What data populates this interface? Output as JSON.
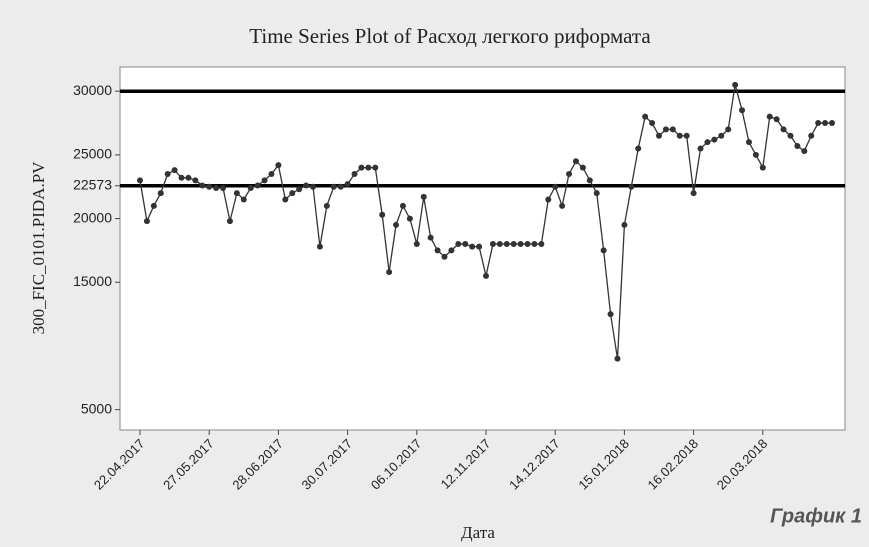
{
  "chart_data": {
    "type": "line",
    "title": "Time Series Plot of Расход легкого риформата",
    "x_label": "Дата",
    "y_label": "300_FIC_0101.PIDA.PV",
    "annotation": "График 1",
    "categories": [
      "22.04.2017",
      null,
      null,
      null,
      null,
      null,
      null,
      null,
      null,
      null,
      "27.05.2017",
      null,
      null,
      null,
      null,
      null,
      null,
      null,
      null,
      null,
      "28.06.2017",
      null,
      null,
      null,
      null,
      null,
      null,
      null,
      null,
      null,
      "30.07.2017",
      null,
      null,
      null,
      null,
      null,
      null,
      null,
      null,
      null,
      "06.10.2017",
      null,
      null,
      null,
      null,
      null,
      null,
      null,
      null,
      null,
      "12.11.2017",
      null,
      null,
      null,
      null,
      null,
      null,
      null,
      null,
      null,
      "14.12.2017",
      null,
      null,
      null,
      null,
      null,
      null,
      null,
      null,
      null,
      "15.01.2018",
      null,
      null,
      null,
      null,
      null,
      null,
      null,
      null,
      null,
      "16.02.2018",
      null,
      null,
      null,
      null,
      null,
      null,
      null,
      null,
      null,
      "20.03.2018",
      null,
      null,
      null,
      null,
      null,
      null,
      null,
      null,
      null,
      null
    ],
    "values": [
      23000,
      19800,
      21000,
      22000,
      23500,
      23800,
      23200,
      23200,
      23000,
      22600,
      22500,
      22400,
      22400,
      19800,
      22000,
      21500,
      22400,
      22600,
      23000,
      23500,
      24200,
      21500,
      22000,
      22300,
      22600,
      22500,
      17800,
      21000,
      22500,
      22500,
      22700,
      23500,
      24000,
      24000,
      24000,
      20300,
      15800,
      19500,
      21000,
      20000,
      18000,
      21700,
      18500,
      17500,
      17000,
      17500,
      18000,
      18000,
      17800,
      17800,
      15500,
      18000,
      18000,
      18000,
      18000,
      18000,
      18000,
      18000,
      18000,
      21500,
      22500,
      21000,
      23500,
      24500,
      24000,
      23000,
      22000,
      17500,
      12500,
      9000,
      19500,
      22500,
      25500,
      28000,
      27500,
      26500,
      27000,
      27000,
      26500,
      26500,
      22000,
      25500,
      26000,
      26200,
      26500,
      27000,
      30500,
      28500,
      26000,
      25000,
      24000,
      28000,
      27800,
      27000,
      26500,
      25700,
      25300,
      26500,
      27500,
      27500,
      27500
    ],
    "color": "#333333",
    "ylim": [
      3400,
      31900
    ],
    "yticks": [
      5000,
      15000,
      20000,
      22573,
      25000,
      30000
    ],
    "reference_lines": [
      30000,
      22573
    ],
    "grid": false
  }
}
